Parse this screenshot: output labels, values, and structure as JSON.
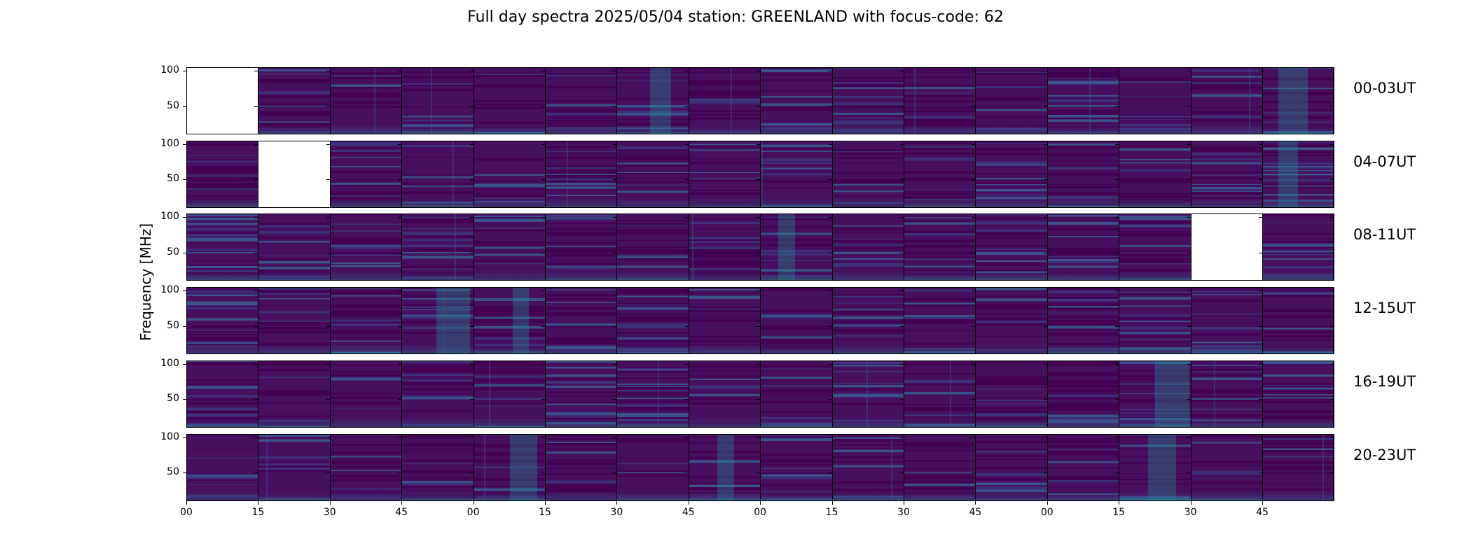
{
  "title": "Full day spectra 2025/05/04 station: GREENLAND with focus-code: 62",
  "chart_data": {
    "type": "heatmap",
    "title": "Full day spectra 2025/05/04 station: GREENLAND with focus-code: 62",
    "ylabel": "Frequency [MHz]",
    "xlabel": "",
    "ylim": [
      10,
      105
    ],
    "yticks": [
      "50",
      "100"
    ],
    "xticks": [
      "00",
      "15",
      "30",
      "45",
      "00",
      "15",
      "30",
      "45",
      "00",
      "15",
      "30",
      "45",
      "00",
      "15",
      "30",
      "45"
    ],
    "colormap": "viridis",
    "rows": [
      {
        "label": "00-03UT",
        "missing_panels": [
          0
        ]
      },
      {
        "label": "04-07UT",
        "missing_panels": [
          1
        ]
      },
      {
        "label": "08-11UT",
        "missing_panels": [
          14
        ]
      },
      {
        "label": "12-15UT",
        "missing_panels": []
      },
      {
        "label": "16-19UT",
        "missing_panels": []
      },
      {
        "label": "20-23UT",
        "missing_panels": []
      }
    ],
    "panels_per_row": 16,
    "minutes_per_panel": 15
  },
  "colors": {
    "background": "#440154",
    "base": "#46105f",
    "line": "#3b518b",
    "bright": "#21908d",
    "hot": "#5ec962"
  }
}
